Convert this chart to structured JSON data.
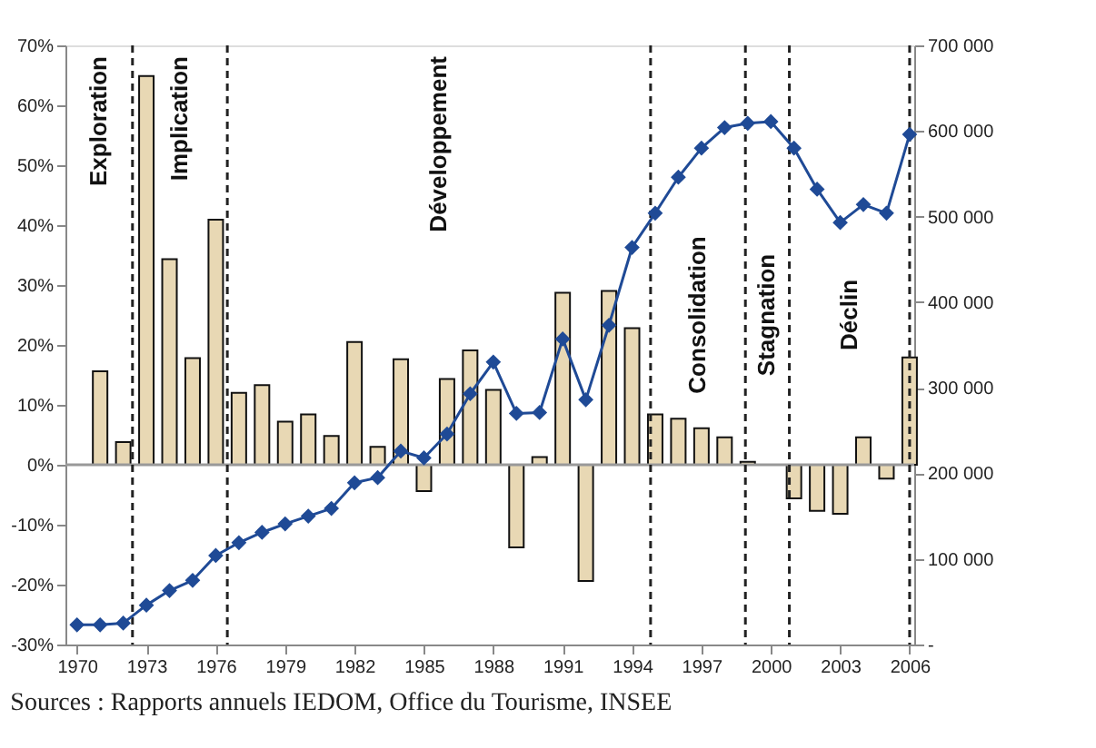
{
  "chart_data": {
    "type": "bar",
    "x": [
      1970,
      1971,
      1972,
      1973,
      1974,
      1975,
      1976,
      1977,
      1978,
      1979,
      1980,
      1981,
      1982,
      1983,
      1984,
      1985,
      1986,
      1987,
      1988,
      1989,
      1990,
      1991,
      1992,
      1993,
      1994,
      1995,
      1996,
      1997,
      1998,
      1999,
      2000,
      2001,
      2002,
      2003,
      2004,
      2005,
      2006
    ],
    "series": [
      {
        "color": "#e8d8b4",
        "values": [
          null,
          15.6,
          3.8,
          64.9,
          34.3,
          17.8,
          40.9,
          12,
          13.3,
          7.2,
          8.4,
          4.8,
          20.5,
          3,
          17.6,
          -4.4,
          14.3,
          19.1,
          12.5,
          -13.8,
          1.3,
          28.7,
          -19.4,
          29,
          22.8,
          8.4,
          7.7,
          6.1,
          4.6,
          0.5,
          null,
          -5.6,
          -7.7,
          -8.2,
          4.6,
          -2.3,
          17.9
        ]
      },
      {
        "type": "line",
        "axis": "y2",
        "color": "#1f4a96",
        "marker": "diamond",
        "line_style": "solid",
        "values": [
          23000,
          23000,
          25000,
          46000,
          63000,
          75000,
          104000,
          119000,
          131000,
          141000,
          150000,
          159000,
          189000,
          195000,
          226000,
          218000,
          246000,
          293000,
          330000,
          270000,
          271000,
          357000,
          286000,
          373000,
          464000,
          504000,
          546000,
          580000,
          604000,
          609000,
          611000,
          580000,
          532000,
          493000,
          514000,
          504000,
          596000
        ]
      }
    ],
    "xlim": [
      1969.5,
      2006.2
    ],
    "xticks": [
      1970,
      1973,
      1976,
      1979,
      1982,
      1985,
      1988,
      1991,
      1994,
      1997,
      2000,
      2003,
      2006
    ],
    "ylim": [
      -30,
      70
    ],
    "yticks": [
      {
        "value": -30,
        "label": "-30%"
      },
      {
        "value": -20,
        "label": "-20%"
      },
      {
        "value": -10,
        "label": "-10%"
      },
      {
        "value": 0,
        "label": "0%"
      },
      {
        "value": 10,
        "label": "10%"
      },
      {
        "value": 20,
        "label": "20%"
      },
      {
        "value": 30,
        "label": "30%"
      },
      {
        "value": 40,
        "label": "40%"
      },
      {
        "value": 50,
        "label": "50%"
      },
      {
        "value": 60,
        "label": "60%"
      },
      {
        "value": 70,
        "label": "70%"
      }
    ],
    "y2lim": [
      0,
      700000
    ],
    "y2ticks": [
      {
        "value": 0,
        "label": "-"
      },
      {
        "value": 100000,
        "label": "100 000"
      },
      {
        "value": 200000,
        "label": "200 000"
      },
      {
        "value": 300000,
        "label": "300 000"
      },
      {
        "value": 400000,
        "label": "400 000"
      },
      {
        "value": 500000,
        "label": "500 000"
      },
      {
        "value": 600000,
        "label": "600 000"
      },
      {
        "value": 700000,
        "label": "700 000"
      }
    ],
    "ref_lines": [
      {
        "axis": "y",
        "value": 0,
        "color": "#999999",
        "line_style": "solid"
      },
      {
        "axis": "x",
        "value": 1972.4,
        "color": "#222222",
        "line_style": "dashed"
      },
      {
        "axis": "x",
        "value": 1976.5,
        "color": "#222222",
        "line_style": "dashed"
      },
      {
        "axis": "x",
        "value": 1994.8,
        "color": "#222222",
        "line_style": "dashed"
      },
      {
        "axis": "x",
        "value": 1998.9,
        "color": "#222222",
        "line_style": "dashed"
      },
      {
        "axis": "x",
        "value": 2000.8,
        "color": "#222222",
        "line_style": "dashed"
      },
      {
        "axis": "x",
        "value": 2006,
        "color": "#222222",
        "line_style": "dashed"
      }
    ],
    "annotations": [
      "Exploration",
      "Implication",
      "Développement",
      "Consolidation",
      "Stagnation",
      "Déclin",
      "Sources : Rapports annuels IEDOM, Office du Tourisme, INSEE"
    ],
    "grid": false
  }
}
